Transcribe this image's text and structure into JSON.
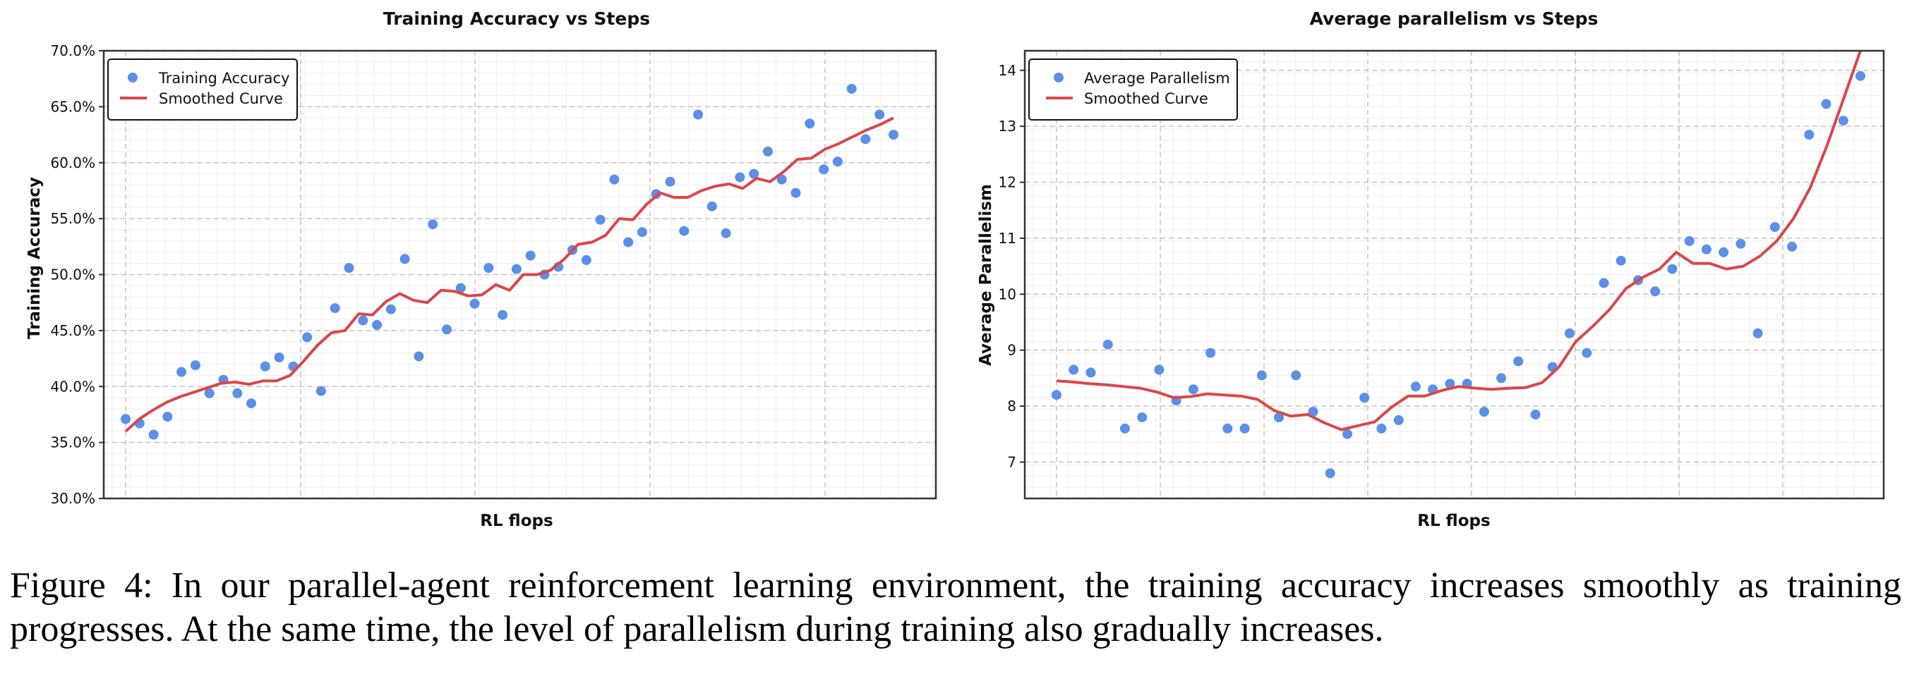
{
  "colors": {
    "points": "#5b8fe8",
    "curve": "#d9474b",
    "grid": "#c4c4c4",
    "minor_grid": "#eeeeee",
    "axes": "#333333"
  },
  "chart_data": [
    {
      "type": "scatter",
      "title": "Training Accuracy vs Steps",
      "xlabel": "RL flops",
      "ylabel": "Training Accuracy",
      "ylim": [
        30,
        70
      ],
      "yticks": [
        "30.0%",
        "35.0%",
        "40.0%",
        "45.0%",
        "50.0%",
        "55.0%",
        "60.0%",
        "65.0%",
        "70.0%"
      ],
      "grid": true,
      "legend_position": "top-left",
      "series": [
        {
          "name": "Training Accuracy",
          "marker": "point",
          "values": [
            37.1,
            36.7,
            35.7,
            37.3,
            41.3,
            41.9,
            39.4,
            40.6,
            39.4,
            38.5,
            41.8,
            42.6,
            41.8,
            44.4,
            39.6,
            47.0,
            50.6,
            45.9,
            45.5,
            46.9,
            51.4,
            42.7,
            54.5,
            45.1,
            48.8,
            47.4,
            50.6,
            46.4,
            50.5,
            51.7,
            50.0,
            50.7,
            52.2,
            51.3,
            54.9,
            58.5,
            52.9,
            53.8,
            57.2,
            58.3,
            53.9,
            64.3,
            56.1,
            53.7,
            58.7,
            59.0,
            61.0,
            58.5,
            57.3,
            63.5,
            59.4,
            60.1,
            66.6,
            62.1,
            64.3,
            62.5
          ]
        },
        {
          "name": "Smoothed Curve",
          "marker": "line",
          "values": [
            36.0,
            37.1,
            37.9,
            38.6,
            39.1,
            39.5,
            39.9,
            40.3,
            40.4,
            40.2,
            40.5,
            40.5,
            41.0,
            42.3,
            43.7,
            44.8,
            45.0,
            46.5,
            46.4,
            47.6,
            48.3,
            47.7,
            47.5,
            48.6,
            48.5,
            48.1,
            48.2,
            49.1,
            48.6,
            50.0,
            50.0,
            50.4,
            51.4,
            52.7,
            52.9,
            53.5,
            55.0,
            54.9,
            56.3,
            57.3,
            56.9,
            56.9,
            57.5,
            57.9,
            58.1,
            57.7,
            58.6,
            58.3,
            59.2,
            60.3,
            60.4,
            61.2,
            61.7,
            62.3,
            62.9,
            63.4,
            64.0
          ]
        }
      ]
    },
    {
      "type": "scatter",
      "title": "Average parallelism vs Steps",
      "xlabel": "RL flops",
      "ylabel": "Average Parallelism",
      "ylim": [
        6.35,
        14.35
      ],
      "yticks": [
        "7",
        "8",
        "9",
        "10",
        "11",
        "12",
        "13",
        "14"
      ],
      "grid": true,
      "legend_position": "top-left",
      "series": [
        {
          "name": "Average Parallelism",
          "marker": "point",
          "values": [
            8.2,
            8.65,
            8.6,
            9.1,
            7.6,
            7.8,
            8.65,
            8.1,
            8.3,
            8.95,
            7.6,
            7.6,
            8.55,
            7.8,
            8.55,
            7.9,
            6.8,
            7.5,
            8.15,
            7.6,
            7.75,
            8.35,
            8.3,
            8.4,
            8.4,
            7.9,
            8.5,
            8.8,
            7.85,
            8.7,
            9.3,
            8.95,
            10.2,
            10.6,
            10.25,
            10.05,
            10.45,
            10.95,
            10.8,
            10.75,
            10.9,
            9.3,
            11.2,
            10.85,
            12.85,
            13.4,
            13.1,
            13.9
          ]
        },
        {
          "name": "Smoothed Curve",
          "marker": "line",
          "values": [
            8.45,
            8.43,
            8.4,
            8.38,
            8.35,
            8.32,
            8.25,
            8.15,
            8.17,
            8.22,
            8.2,
            8.18,
            8.12,
            7.92,
            7.82,
            7.85,
            7.7,
            7.58,
            7.65,
            7.72,
            7.98,
            8.18,
            8.18,
            8.28,
            8.35,
            8.32,
            8.3,
            8.32,
            8.33,
            8.42,
            8.7,
            9.15,
            9.42,
            9.72,
            10.1,
            10.3,
            10.45,
            10.75,
            10.55,
            10.55,
            10.45,
            10.5,
            10.68,
            10.95,
            11.35,
            11.9,
            12.65,
            13.5,
            14.35
          ]
        }
      ]
    }
  ],
  "caption": "Figure 4: In our parallel-agent reinforcement learning environment, the training accuracy increases smoothly as training progresses. At the same time, the level of parallelism during training also gradually increases."
}
